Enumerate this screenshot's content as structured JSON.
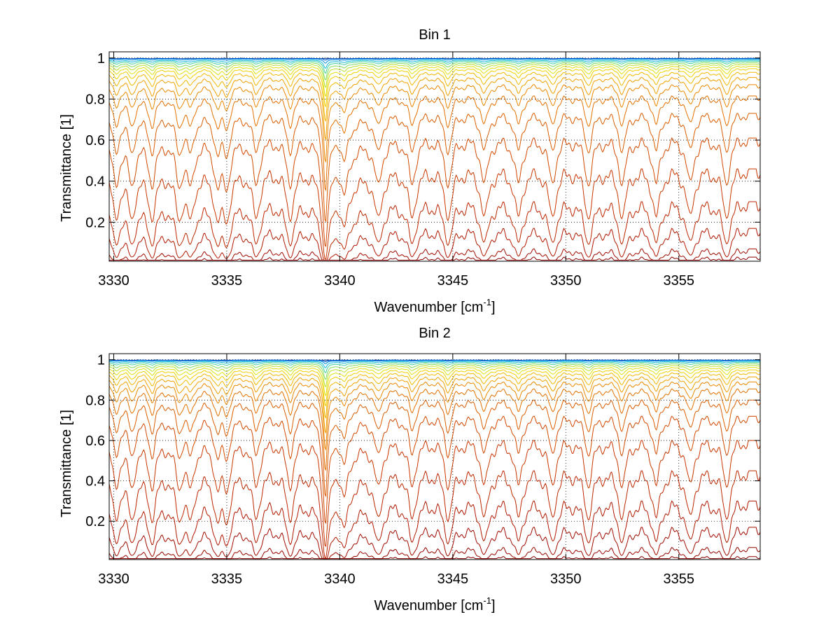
{
  "chart_data": [
    {
      "type": "line",
      "title": "Bin 1",
      "xlabel": "Wavenumber [cm",
      "xlabel_superscript": "-1",
      "xlabel_suffix": "]",
      "ylabel": "Transmittance [1]",
      "xlim": [
        3329.8,
        3358.6
      ],
      "ylim": [
        0.01,
        1.03
      ],
      "grid": "dotted",
      "xticks": [
        3330,
        3335,
        3340,
        3345,
        3350,
        3355
      ],
      "xtick_labels": [
        "3330",
        "3335",
        "3340",
        "3345",
        "3350",
        "3355"
      ],
      "yticks": [
        0.2,
        0.4,
        0.6,
        0.8,
        1
      ],
      "ytick_labels": [
        "0.2",
        "0.4",
        "0.6",
        "0.8",
        "1"
      ],
      "main_line": 3339.35,
      "main_line_broad_shoulder": true,
      "absorption_lines": [
        3330.1,
        3330.8,
        3331.7,
        3332.9,
        3333.4,
        3334.6,
        3335.0,
        3336.3,
        3337.8,
        3339.35,
        3340.2,
        3341.7,
        3343.2,
        3344.8,
        3346.4,
        3347.9,
        3349.4,
        3351.0,
        3352.5,
        3354.0,
        3355.5,
        3357.1
      ],
      "series_baselines": [
        1.0,
        0.998,
        0.995,
        0.99,
        0.985,
        0.978,
        0.97,
        0.96,
        0.948,
        0.93,
        0.905,
        0.87,
        0.815,
        0.73,
        0.61,
        0.46,
        0.3,
        0.17,
        0.07,
        0.03
      ],
      "series_colors": [
        "#00308c",
        "#0058d0",
        "#0090e8",
        "#10b8d8",
        "#40d0a0",
        "#80dc60",
        "#b8e030",
        "#e0e010",
        "#f0d000",
        "#f0b800",
        "#f0a000",
        "#ea8800",
        "#e27000",
        "#da5c00",
        "#d24800",
        "#c83600",
        "#bc2600",
        "#b01800",
        "#a00c00",
        "#900000"
      ]
    },
    {
      "type": "line",
      "title": "Bin 2",
      "xlabel": "Wavenumber [cm",
      "xlabel_superscript": "-1",
      "xlabel_suffix": "]",
      "ylabel": "Transmittance [1]",
      "xlim": [
        3329.8,
        3358.6
      ],
      "ylim": [
        0.01,
        1.03
      ],
      "grid": "dotted",
      "xticks": [
        3330,
        3335,
        3340,
        3345,
        3350,
        3355
      ],
      "xtick_labels": [
        "3330",
        "3335",
        "3340",
        "3345",
        "3350",
        "3355"
      ],
      "yticks": [
        0.2,
        0.4,
        0.6,
        0.8,
        1
      ],
      "ytick_labels": [
        "0.2",
        "0.4",
        "0.6",
        "0.8",
        "1"
      ],
      "main_line": 3339.35,
      "main_line_broad_shoulder": true,
      "absorption_lines": [
        3330.1,
        3330.8,
        3331.7,
        3332.9,
        3333.4,
        3334.6,
        3335.0,
        3336.3,
        3337.8,
        3339.35,
        3340.2,
        3341.7,
        3343.2,
        3344.8,
        3346.4,
        3347.9,
        3349.4,
        3351.0,
        3352.5,
        3354.0,
        3355.5,
        3357.1
      ],
      "series_baselines": [
        1.0,
        0.998,
        0.996,
        0.992,
        0.987,
        0.98,
        0.972,
        0.962,
        0.95,
        0.935,
        0.915,
        0.89,
        0.855,
        0.8,
        0.72,
        0.6,
        0.45,
        0.3,
        0.17,
        0.07,
        0.025
      ],
      "series_colors": [
        "#00308c",
        "#0058d0",
        "#0090e8",
        "#10b8d8",
        "#40d0a0",
        "#80dc60",
        "#b8e030",
        "#e0e010",
        "#f0d000",
        "#f0b800",
        "#f0a000",
        "#ea8800",
        "#e27000",
        "#da5c00",
        "#d24800",
        "#c83600",
        "#bc2600",
        "#b01800",
        "#a00c00",
        "#960600",
        "#880000"
      ]
    }
  ]
}
